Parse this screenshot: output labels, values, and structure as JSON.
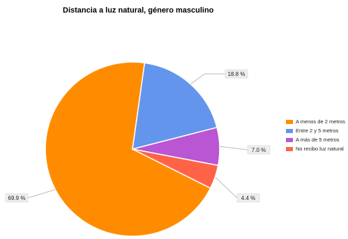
{
  "chart_data": {
    "type": "pie",
    "title": "Distancia a luz natural, género masculino",
    "categories": [
      "A menos de 2 metros",
      "Entre 2 y 5 metros",
      "A más de 5 metros",
      "No recibo luz natural"
    ],
    "values": [
      69.9,
      18.8,
      7.0,
      4.4
    ],
    "data_labels": [
      "69.9 %",
      "18.8 %",
      "7.0 %",
      "4.4 %"
    ],
    "colors": [
      "#FF8C00",
      "#6495ED",
      "#BA55D3",
      "#FF6347"
    ],
    "legend_position": "right"
  }
}
